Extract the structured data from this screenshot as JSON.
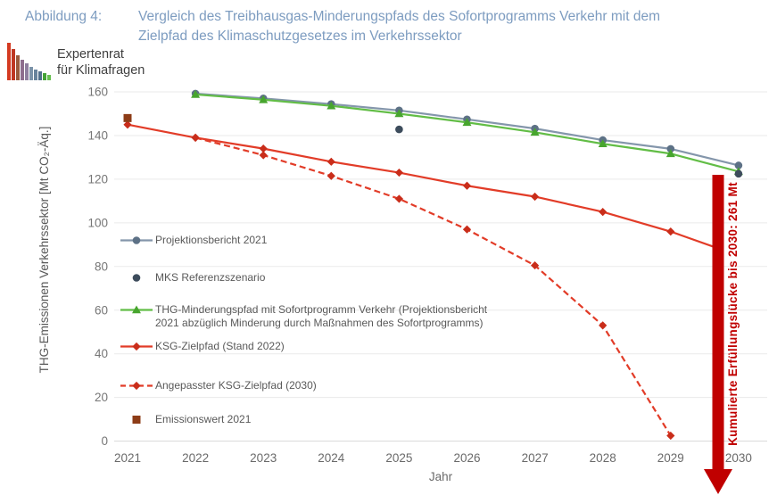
{
  "figure": {
    "label": "Abbildung 4:",
    "title_line1": "Vergleich des Treibhausgas-Minderungspfads des Sofortprogramms Verkehr mit dem",
    "title_line2": "Zielpfad des Klimaschutzgesetzes im Verkehrssektor",
    "title_color": "#7d9cc0"
  },
  "logo": {
    "line1": "Expertenrat",
    "line2": "für Klimafragen",
    "bar_heights": [
      42,
      35,
      28,
      23,
      19,
      15,
      12,
      10,
      8,
      6
    ],
    "bar_colors": [
      "#d43a21",
      "#bf3722",
      "#9a5a3c",
      "#8e6e8e",
      "#8f7f9f",
      "#7b93a9",
      "#68839c",
      "#52708c",
      "#44a337",
      "#66bf4f"
    ]
  },
  "chart_data": {
    "type": "line",
    "title": "",
    "xlabel": "Jahr",
    "ylabel": "THG-Emissionen Verkehrssektor [Mt CO₂-Äq.]",
    "x_ticks": [
      2021,
      2022,
      2023,
      2024,
      2025,
      2026,
      2027,
      2028,
      2029,
      2030
    ],
    "y_ticks": [
      0,
      20,
      40,
      60,
      80,
      100,
      120,
      140,
      160
    ],
    "ylim": [
      0,
      160
    ],
    "grid": true,
    "legend_position": "inside-left",
    "series": [
      {
        "id": "projektionsbericht-2021",
        "name": "Projektionsbericht 2021",
        "line": true,
        "dash": false,
        "marker": "circle",
        "color": "#8496ab",
        "marker_color": "#5d7186",
        "x": [
          2022,
          2023,
          2024,
          2025,
          2026,
          2027,
          2028,
          2029,
          2030
        ],
        "values": [
          159.2,
          157.0,
          154.4,
          151.5,
          147.4,
          143.2,
          137.9,
          133.9,
          126.3
        ]
      },
      {
        "id": "mks-referenzszenario",
        "name": "MKS Referenzszenario",
        "line": false,
        "dash": false,
        "marker": "circle",
        "on_top": true,
        "color": "#3d4c5c",
        "marker_color": "#3d4c5c",
        "x": [
          2025,
          2030
        ],
        "values": [
          142.8,
          122.5
        ]
      },
      {
        "id": "thg-minderungspfad-sofortprogramm",
        "name": "THG-Minderungspfad mit Sofortprogramm Verkehr (Projektionsbericht 2021 abzüglich Minderung durch Maßnahmen des Sofortprogramms)",
        "line": true,
        "dash": false,
        "marker": "triangle",
        "color": "#62bd46",
        "marker_color": "#47a52e",
        "x": [
          2022,
          2023,
          2024,
          2025,
          2026,
          2027,
          2028,
          2029,
          2030
        ],
        "values": [
          158.8,
          156.4,
          153.6,
          150.0,
          146.0,
          141.5,
          136.2,
          131.7,
          123.5
        ]
      },
      {
        "id": "ksg-zielpfad",
        "name": "KSG-Zielpfad (Stand 2022)",
        "line": true,
        "dash": false,
        "marker": "diamond",
        "clip_x": 806,
        "color": "#e23c28",
        "marker_color": "#c92d1a",
        "x": [
          2021,
          2022,
          2023,
          2024,
          2025,
          2026,
          2027,
          2028,
          2029,
          2030
        ],
        "values": [
          145,
          139,
          134,
          128,
          123,
          117,
          112,
          105,
          96,
          85
        ]
      },
      {
        "id": "angepasster-ksg-zielpfad",
        "name": "Angepasster KSG-Zielpfad (2030)",
        "line": true,
        "dash": true,
        "marker": "diamond",
        "color": "#e23c28",
        "marker_color": "#c92d1a",
        "x": [
          2022,
          2023,
          2024,
          2025,
          2026,
          2027,
          2028,
          2029
        ],
        "values": [
          139,
          131,
          121.5,
          111,
          97,
          80.5,
          53,
          2.5
        ]
      },
      {
        "id": "emissionswert-2021",
        "name": "Emissionswert 2021",
        "line": false,
        "dash": false,
        "marker": "square",
        "color": "#8d3c17",
        "marker_color": "#8d3c17",
        "x": [
          2021
        ],
        "values": [
          148
        ]
      }
    ],
    "annotation": {
      "text": "Kumulierte Erfüllungslücke bis 2030: 261 Mt",
      "color": "#c00000"
    }
  },
  "legend": {
    "items": [
      {
        "line1": "Projektionsbericht 2021"
      },
      {
        "line1": "MKS Referenzszenario"
      },
      {
        "line1": "THG-Minderungspfad mit Sofortprogramm Verkehr (Projektionsbericht",
        "line2": "2021 abzüglich Minderung durch Maßnahmen des Sofortprogramms)"
      },
      {
        "line1": "KSG-Zielpfad (Stand 2022)"
      },
      {
        "line1": "Angepasster KSG-Zielpfad (2030)"
      },
      {
        "line1": "Emissionswert 2021"
      }
    ]
  }
}
